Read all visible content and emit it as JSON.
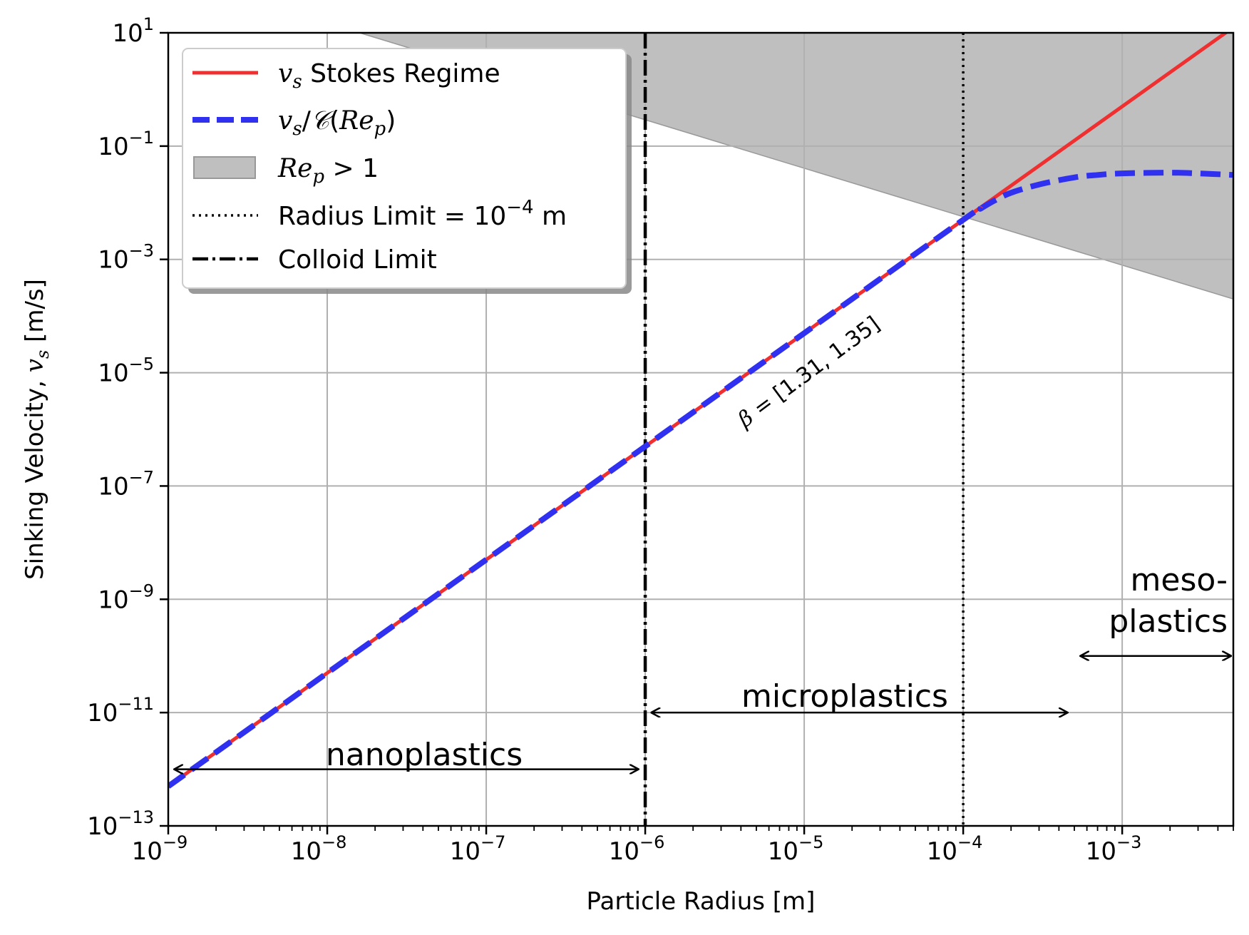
{
  "chart_data": {
    "type": "line",
    "xlabel": "Particle Radius [m]",
    "ylabel": "Sinking Velocity, v_s [m/s]",
    "ylabel_prefix": "Sinking Velocity, ",
    "ylabel_var": "v",
    "ylabel_var_sub": "s",
    "ylabel_suffix": " [m/s]",
    "xscale": "log",
    "yscale": "log",
    "xlim": [
      1e-09,
      0.005
    ],
    "ylim": [
      1e-13,
      10
    ],
    "grid": true,
    "x_ticks": [
      {
        "base": "10",
        "exp": "−9",
        "value": 1e-09
      },
      {
        "base": "10",
        "exp": "−8",
        "value": 1e-08
      },
      {
        "base": "10",
        "exp": "−7",
        "value": 1e-07
      },
      {
        "base": "10",
        "exp": "−6",
        "value": 1e-06
      },
      {
        "base": "10",
        "exp": "−5",
        "value": 1e-05
      },
      {
        "base": "10",
        "exp": "−4",
        "value": 0.0001
      },
      {
        "base": "10",
        "exp": "−3",
        "value": 0.001
      }
    ],
    "y_ticks": [
      {
        "base": "10",
        "exp": "1",
        "value": 10
      },
      {
        "base": "10",
        "exp": "−1",
        "value": 0.1
      },
      {
        "base": "10",
        "exp": "−3",
        "value": 0.001
      },
      {
        "base": "10",
        "exp": "−5",
        "value": 1e-05
      },
      {
        "base": "10",
        "exp": "−7",
        "value": 1e-07
      },
      {
        "base": "10",
        "exp": "−9",
        "value": 1e-09
      },
      {
        "base": "10",
        "exp": "−11",
        "value": 1e-11
      },
      {
        "base": "10",
        "exp": "−13",
        "value": 1e-13
      }
    ],
    "series": [
      {
        "name": "v_s Stokes Regime",
        "style": "solid",
        "color": "#f03030",
        "x": [
          1e-09,
          1e-08,
          1e-07,
          1e-06,
          1e-05,
          0.0001,
          0.001,
          0.005
        ],
        "y": [
          5e-13,
          5e-11,
          5e-09,
          5e-07,
          5e-05,
          0.005,
          0.5,
          12.5
        ]
      },
      {
        "name": "v_s/C(Re_p)",
        "style": "dashed",
        "color": "#3030f0",
        "x": [
          1e-09,
          1e-08,
          1e-07,
          1e-06,
          1e-05,
          0.0001,
          0.00013,
          0.00016,
          0.0002,
          0.0003,
          0.0005,
          0.0007,
          0.001,
          0.002,
          0.003,
          0.005
        ],
        "y": [
          5e-13,
          5e-11,
          5e-09,
          5e-07,
          5e-05,
          0.005,
          0.008,
          0.0112,
          0.015,
          0.021,
          0.028,
          0.031,
          0.033,
          0.034,
          0.033,
          0.031
        ]
      }
    ],
    "shaded_region": {
      "name": "Re_p > 1",
      "color": "#bfbfbf",
      "boundary_x": [
        1.6e-08,
        0.005
      ],
      "boundary_y": [
        10,
        0.0002
      ]
    },
    "vertical_lines": [
      {
        "name": "Radius Limit = 10^-4 m",
        "x": 0.0001,
        "style": "dotted"
      },
      {
        "name": "Colloid Limit",
        "x": 1e-06,
        "style": "dashdot"
      }
    ],
    "legend_placement": "top-left",
    "legend": [
      {
        "key": "stokes",
        "var": "v",
        "sub": "s",
        "rest": " Stokes Regime"
      },
      {
        "key": "corrected",
        "var": "v",
        "sub": "s",
        "slash": "/",
        "calC": "𝒞",
        "open": "(",
        "re": "Re",
        "resub": "p",
        "close": ")"
      },
      {
        "key": "re",
        "re": "Re",
        "resub": "p",
        "rest": " > 1"
      },
      {
        "key": "radius",
        "text": "Radius Limit = 10",
        "sup": "−4",
        "unit": " m"
      },
      {
        "key": "colloid",
        "text": "Colloid Limit"
      }
    ],
    "regions": [
      {
        "label": "nanoplastics",
        "x_start": 1.1e-09,
        "x_end": 9e-07
      },
      {
        "label": "microplastics",
        "x_start": 1.1e-06,
        "x_end": 0.00045
      },
      {
        "label_line1": "meso-",
        "label_line2": "plastics",
        "x_start": 0.00055,
        "x_end": 0.0048
      }
    ],
    "annotation": {
      "text": "β = [1.31, 1.35]",
      "beta": "β",
      "rest": " = [1.31, 1.35]"
    }
  }
}
